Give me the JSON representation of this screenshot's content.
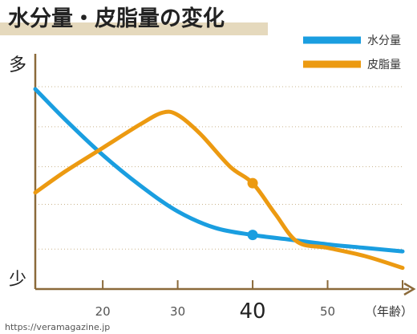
{
  "chart_data": {
    "type": "line",
    "title": "水分量・皮脂量の変化",
    "xlabel": "（年齢）",
    "ylabel_top": "多",
    "ylabel_bottom": "少",
    "x_ticks": [
      "20",
      "30",
      "40",
      "50"
    ],
    "highlight_x": "40",
    "x_range": [
      11,
      60
    ],
    "y_range": [
      0,
      100
    ],
    "grid": "dotted horizontal",
    "legend_position": "top-right",
    "series": [
      {
        "name": "水分量",
        "color": "#1a9ee0",
        "x": [
          11,
          15,
          20,
          25,
          30,
          35,
          40,
          45,
          50,
          55,
          60
        ],
        "y": [
          85,
          72,
          57,
          44,
          33,
          26,
          23,
          21,
          19,
          17.5,
          16
        ]
      },
      {
        "name": "皮脂量",
        "color": "#ec9a11",
        "x": [
          11,
          15,
          20,
          25,
          28,
          30,
          33,
          37,
          40,
          43,
          46,
          50,
          55,
          60
        ],
        "y": [
          41,
          50,
          60,
          70,
          75,
          74,
          66,
          52,
          45,
          32,
          20,
          17.5,
          14,
          9
        ]
      }
    ],
    "markers": [
      {
        "series": "水分量",
        "x": 40,
        "y": 23
      },
      {
        "series": "皮脂量",
        "x": 40,
        "y": 45
      }
    ]
  },
  "watermark": "https://veramagazine.jp",
  "colors": {
    "axis": "#8b6a3a",
    "grid": "#c9b48c",
    "title_underline": "#e5d9bd",
    "text": "#333333",
    "tick_text": "#555555"
  }
}
